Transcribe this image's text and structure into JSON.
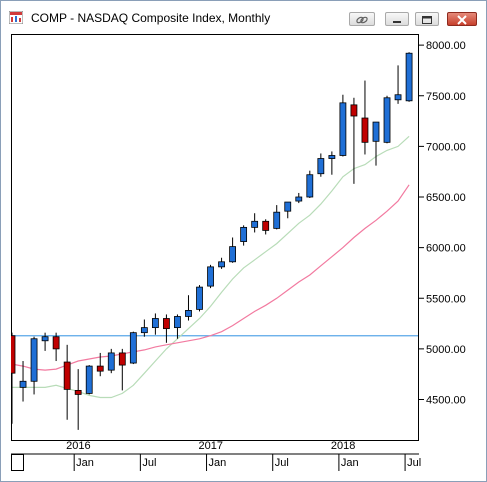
{
  "window": {
    "title": "COMP - NASDAQ Composite Index, Monthly",
    "icons": [
      "app-chart-icon",
      "link-icon",
      "minimize-icon",
      "maximize-icon",
      "close-icon"
    ]
  },
  "colors": {
    "up_candle": "#1f6fd6",
    "down_candle": "#c00000",
    "wick": "#000000",
    "ma_fast": "#b8dcb8",
    "ma_slow": "#f27aa0",
    "hline": "#5aa7e8",
    "grid": "#000000"
  },
  "chart_data": {
    "type": "candlestick",
    "title": "COMP - NASDAQ Composite Index, Monthly",
    "ylim": [
      4100,
      8100
    ],
    "y_ticks": [
      "8000.00",
      "7500.00",
      "7000.00",
      "6500.00",
      "6000.00",
      "5500.00",
      "5000.00",
      "4500.00"
    ],
    "y_tick_values": [
      8000,
      7500,
      7000,
      6500,
      6000,
      5500,
      5000,
      4500
    ],
    "x_year_labels": [
      {
        "label": "2016",
        "index": 6
      },
      {
        "label": "2017",
        "index": 18
      },
      {
        "label": "2018",
        "index": 30
      }
    ],
    "x_month_labels": [
      {
        "label": "Jan",
        "index": 6
      },
      {
        "label": "Jul",
        "index": 12
      },
      {
        "label": "Jan",
        "index": 18
      },
      {
        "label": "Jul",
        "index": 24
      },
      {
        "label": "Jan",
        "index": 30
      },
      {
        "label": "Jul",
        "index": 36
      }
    ],
    "horizontal_line": 5130,
    "candles": [
      {
        "o": 5130,
        "h": 5160,
        "l": 4260,
        "c": 4760
      },
      {
        "o": 4620,
        "h": 4880,
        "l": 4480,
        "c": 4680
      },
      {
        "o": 4680,
        "h": 5120,
        "l": 4550,
        "c": 5100
      },
      {
        "o": 5080,
        "h": 5160,
        "l": 4980,
        "c": 5120
      },
      {
        "o": 5120,
        "h": 5160,
        "l": 4880,
        "c": 5000
      },
      {
        "o": 4870,
        "h": 5040,
        "l": 4300,
        "c": 4600
      },
      {
        "o": 4590,
        "h": 4800,
        "l": 4200,
        "c": 4550
      },
      {
        "o": 4560,
        "h": 4840,
        "l": 4550,
        "c": 4830
      },
      {
        "o": 4830,
        "h": 4960,
        "l": 4730,
        "c": 4780
      },
      {
        "o": 4790,
        "h": 5000,
        "l": 4760,
        "c": 4960
      },
      {
        "o": 4960,
        "h": 5000,
        "l": 4590,
        "c": 4840
      },
      {
        "o": 4860,
        "h": 5170,
        "l": 4850,
        "c": 5160
      },
      {
        "o": 5160,
        "h": 5290,
        "l": 5120,
        "c": 5210
      },
      {
        "o": 5210,
        "h": 5350,
        "l": 5140,
        "c": 5300
      },
      {
        "o": 5300,
        "h": 5340,
        "l": 5060,
        "c": 5200
      },
      {
        "o": 5210,
        "h": 5340,
        "l": 5100,
        "c": 5320
      },
      {
        "o": 5320,
        "h": 5530,
        "l": 5280,
        "c": 5380
      },
      {
        "o": 5390,
        "h": 5630,
        "l": 5370,
        "c": 5610
      },
      {
        "o": 5620,
        "h": 5830,
        "l": 5600,
        "c": 5810
      },
      {
        "o": 5810,
        "h": 5900,
        "l": 5790,
        "c": 5860
      },
      {
        "o": 5860,
        "h": 6100,
        "l": 5850,
        "c": 6010
      },
      {
        "o": 6060,
        "h": 6220,
        "l": 6020,
        "c": 6200
      },
      {
        "o": 6200,
        "h": 6340,
        "l": 6150,
        "c": 6260
      },
      {
        "o": 6260,
        "h": 6280,
        "l": 6130,
        "c": 6170
      },
      {
        "o": 6190,
        "h": 6420,
        "l": 6180,
        "c": 6350
      },
      {
        "o": 6360,
        "h": 6450,
        "l": 6290,
        "c": 6450
      },
      {
        "o": 6460,
        "h": 6540,
        "l": 6440,
        "c": 6500
      },
      {
        "o": 6500,
        "h": 6760,
        "l": 6490,
        "c": 6720
      },
      {
        "o": 6730,
        "h": 6930,
        "l": 6700,
        "c": 6880
      },
      {
        "o": 6880,
        "h": 6950,
        "l": 6720,
        "c": 6910
      },
      {
        "o": 6910,
        "h": 7510,
        "l": 6900,
        "c": 7430
      },
      {
        "o": 7410,
        "h": 7480,
        "l": 6630,
        "c": 7300
      },
      {
        "o": 7280,
        "h": 7650,
        "l": 6920,
        "c": 7040
      },
      {
        "o": 7050,
        "h": 7240,
        "l": 6810,
        "c": 7240
      },
      {
        "o": 7040,
        "h": 7500,
        "l": 7030,
        "c": 7480
      },
      {
        "o": 7460,
        "h": 7800,
        "l": 7420,
        "c": 7510
      },
      {
        "o": 7450,
        "h": 7930,
        "l": 7440,
        "c": 7920
      }
    ],
    "ma_fast": [
      4620,
      4620,
      4620,
      4620,
      4640,
      4610,
      4580,
      4540,
      4520,
      4520,
      4560,
      4640,
      4760,
      4880,
      5000,
      5100,
      5200,
      5300,
      5420,
      5560,
      5690,
      5800,
      5880,
      5960,
      6040,
      6140,
      6240,
      6320,
      6430,
      6560,
      6700,
      6780,
      6820,
      6900,
      6960,
      7000,
      7100
    ],
    "ma_slow": [
      4850,
      4830,
      4800,
      4790,
      4800,
      4840,
      4880,
      4900,
      4920,
      4930,
      4950,
      4970,
      4990,
      5020,
      5040,
      5060,
      5080,
      5100,
      5130,
      5170,
      5230,
      5300,
      5370,
      5430,
      5500,
      5580,
      5660,
      5730,
      5820,
      5910,
      6000,
      6100,
      6190,
      6270,
      6360,
      6460,
      6620
    ]
  }
}
